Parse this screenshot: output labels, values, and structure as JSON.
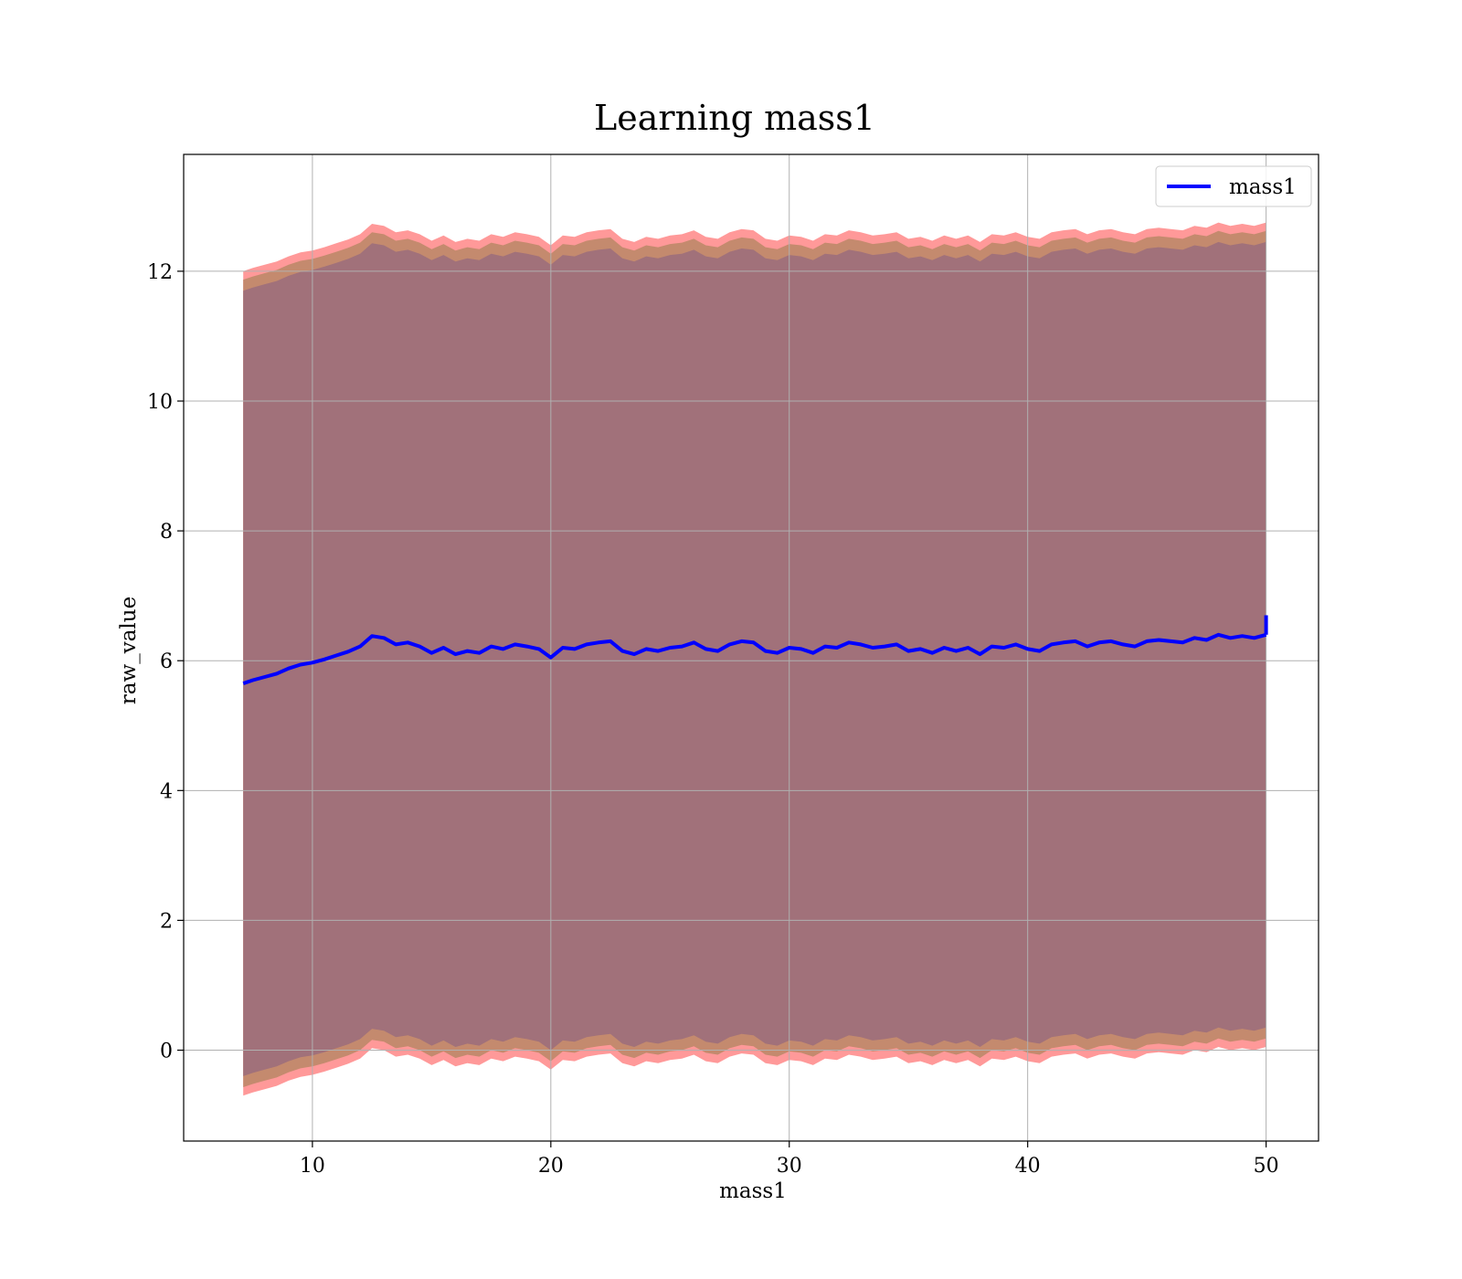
{
  "chart_data": {
    "type": "line",
    "title": "Learning mass1",
    "xlabel": "mass1",
    "ylabel": "raw_value",
    "xlim": [
      4.6,
      52.2
    ],
    "ylim": [
      -1.4,
      13.8
    ],
    "x_ticks": [
      10,
      20,
      30,
      40,
      50
    ],
    "y_ticks": [
      0,
      2,
      4,
      6,
      8,
      10,
      12
    ],
    "grid": true,
    "legend_position": "top-right",
    "x": [
      7.1,
      7.5,
      8.0,
      8.5,
      9.0,
      9.5,
      10.0,
      10.5,
      11.0,
      11.5,
      12.0,
      12.5,
      13.0,
      13.5,
      14.0,
      14.5,
      15.0,
      15.5,
      16.0,
      16.5,
      17.0,
      17.5,
      18.0,
      18.5,
      19.0,
      19.5,
      20.0,
      20.5,
      21.0,
      21.5,
      22.0,
      22.5,
      23.0,
      23.5,
      24.0,
      24.5,
      25.0,
      25.5,
      26.0,
      26.5,
      27.0,
      27.5,
      28.0,
      28.5,
      29.0,
      29.5,
      30.0,
      30.5,
      31.0,
      31.5,
      32.0,
      32.5,
      33.0,
      33.5,
      34.0,
      34.5,
      35.0,
      35.5,
      36.0,
      36.5,
      37.0,
      37.5,
      38.0,
      38.5,
      39.0,
      39.5,
      40.0,
      40.5,
      41.0,
      41.5,
      42.0,
      42.5,
      43.0,
      43.5,
      44.0,
      44.5,
      45.0,
      45.5,
      46.0,
      46.5,
      47.0,
      47.5,
      48.0,
      48.5,
      49.0,
      49.5,
      50.0
    ],
    "series": [
      {
        "name": "mass1",
        "color": "#0000ff",
        "values": [
          5.65,
          5.7,
          5.75,
          5.8,
          5.88,
          5.94,
          5.97,
          6.02,
          6.08,
          6.14,
          6.22,
          6.38,
          6.35,
          6.25,
          6.28,
          6.22,
          6.12,
          6.2,
          6.1,
          6.15,
          6.12,
          6.22,
          6.18,
          6.25,
          6.22,
          6.18,
          6.05,
          6.2,
          6.18,
          6.25,
          6.28,
          6.3,
          6.15,
          6.1,
          6.18,
          6.15,
          6.2,
          6.22,
          6.28,
          6.18,
          6.15,
          6.25,
          6.3,
          6.28,
          6.15,
          6.12,
          6.2,
          6.18,
          6.12,
          6.22,
          6.2,
          6.28,
          6.25,
          6.2,
          6.22,
          6.25,
          6.15,
          6.18,
          6.12,
          6.2,
          6.15,
          6.2,
          6.1,
          6.22,
          6.2,
          6.25,
          6.18,
          6.15,
          6.25,
          6.28,
          6.3,
          6.22,
          6.28,
          6.3,
          6.25,
          6.22,
          6.3,
          6.32,
          6.3,
          6.28,
          6.35,
          6.32,
          6.4,
          6.35,
          6.38,
          6.35,
          6.4
        ]
      }
    ],
    "band": {
      "color_outer": "#ff9999",
      "color_inner": "#c48a6e",
      "color_core": "#a1717a",
      "outer_halfwidth": 6.35,
      "inner_halfwidth": 6.22,
      "core_halfwidth": 6.05
    },
    "end_spike": {
      "x": 50.0,
      "from": 6.4,
      "to": 6.7
    }
  }
}
